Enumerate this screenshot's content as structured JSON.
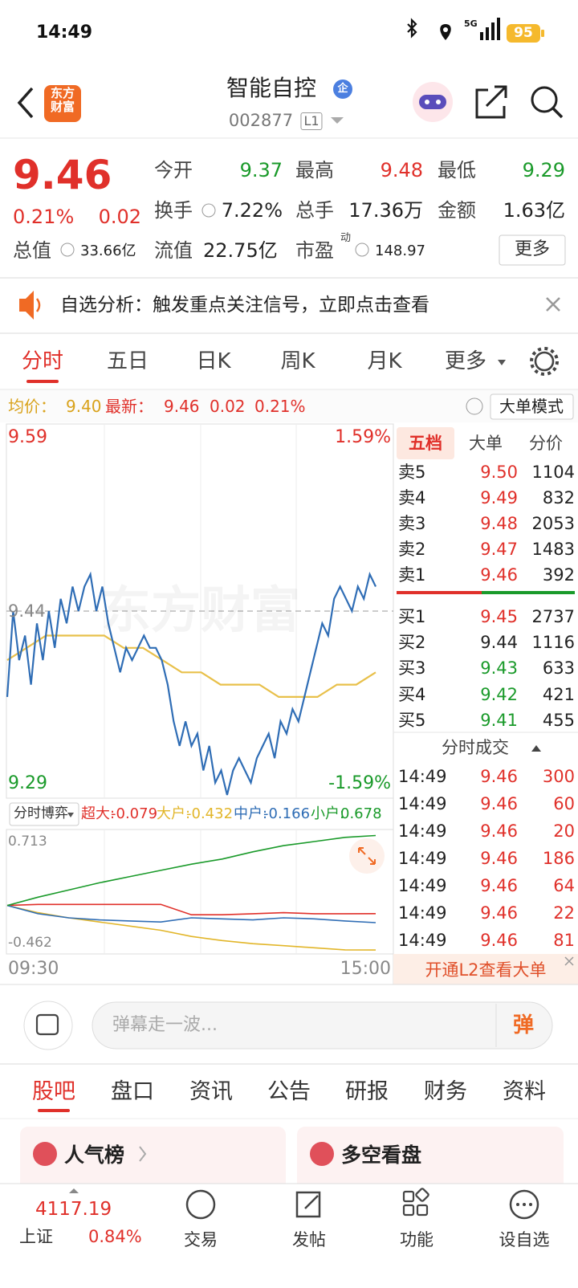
{
  "status_bar": {
    "time": "14:49",
    "network": "5G",
    "battery": "95"
  },
  "header": {
    "logo": "东方财富",
    "title": "智能自控",
    "badge": "企",
    "code": "002877",
    "level": "L1"
  },
  "quote": {
    "price": "9.46",
    "change_pct": "0.21%",
    "change": "0.02",
    "stats": [
      {
        "label": "今开",
        "value": "9.37",
        "color": "#1a9a2a"
      },
      {
        "label": "最高",
        "value": "9.48",
        "color": "#e0302a"
      },
      {
        "label": "最低",
        "value": "9.29",
        "color": "#1a9a2a"
      },
      {
        "label": "换手",
        "value": "7.22%"
      },
      {
        "label": "总手",
        "value": "17.36万"
      },
      {
        "label": "金额",
        "value": "1.63亿"
      },
      {
        "label": "总值",
        "value": "33.66亿"
      },
      {
        "label": "流值",
        "value": "22.75亿"
      },
      {
        "label": "市盈",
        "superscript": "动",
        "value": "148.97"
      }
    ],
    "more": "更多"
  },
  "notice": "自选分析：触发重点关注信号，立即点击查看",
  "tabs": [
    "分时",
    "五日",
    "日K",
    "周K",
    "月K",
    "更多"
  ],
  "summary": {
    "avg_label": "均价：",
    "avg": "9.40",
    "last_label": "最新：",
    "last": "9.46",
    "change": "0.02",
    "change_pct": "0.21%",
    "mode_button": "大单模式"
  },
  "intraday": {
    "watermark": "东方财富",
    "ylim": [
      9.29,
      9.59
    ],
    "prev_close": 9.44,
    "upper_pct": "1.59%",
    "lower_pct": "-1.59%",
    "price": [
      9.37,
      9.44,
      9.4,
      9.42,
      9.38,
      9.43,
      9.4,
      9.44,
      9.41,
      9.45,
      9.43,
      9.46,
      9.44,
      9.46,
      9.47,
      9.44,
      9.46,
      9.43,
      9.41,
      9.39,
      9.41,
      9.4,
      9.41,
      9.42,
      9.41,
      9.41,
      9.4,
      9.38,
      9.35,
      9.33,
      9.35,
      9.33,
      9.34,
      9.31,
      9.33,
      9.3,
      9.31,
      9.29,
      9.31,
      9.32,
      9.31,
      9.3,
      9.32,
      9.33,
      9.34,
      9.32,
      9.35,
      9.34,
      9.36,
      9.35,
      9.37,
      9.39,
      9.41,
      9.43,
      9.42,
      9.45,
      9.46,
      9.45,
      9.44,
      9.46,
      9.45,
      9.47,
      9.46
    ],
    "price_color": "#2f6db5",
    "avg": [
      9.4,
      9.41,
      9.42,
      9.42,
      9.42,
      9.42,
      9.41,
      9.41,
      9.4,
      9.39,
      9.39,
      9.38,
      9.38,
      9.38,
      9.37,
      9.37,
      9.37,
      9.38,
      9.38,
      9.39
    ],
    "avg_color": "#e8c04a"
  },
  "flow": {
    "selector": "分时博弈",
    "ylim": [
      -0.462,
      0.713
    ],
    "x_start": "09:30",
    "x_end": "15:00",
    "series": [
      {
        "name": "超大:",
        "color": "#e0302a",
        "values": [
          0,
          0.01,
          0.01,
          0.01,
          0.01,
          0.01,
          -0.09,
          -0.09,
          -0.08,
          -0.07,
          -0.08,
          -0.08,
          -0.079
        ]
      },
      {
        "name": "大户:",
        "color": "#e2b62a",
        "values": [
          0,
          -0.07,
          -0.12,
          -0.16,
          -0.2,
          -0.24,
          -0.3,
          -0.34,
          -0.37,
          -0.39,
          -0.41,
          -0.43,
          -0.432
        ]
      },
      {
        "name": "中户:",
        "color": "#2f6db5",
        "values": [
          0,
          -0.08,
          -0.12,
          -0.14,
          -0.15,
          -0.16,
          -0.12,
          -0.13,
          -0.14,
          -0.12,
          -0.13,
          -0.15,
          -0.166
        ]
      },
      {
        "name": "小户:",
        "color": "#1a9a2a",
        "values": [
          0,
          0.08,
          0.15,
          0.22,
          0.28,
          0.34,
          0.4,
          0.45,
          0.52,
          0.58,
          0.62,
          0.66,
          0.678
        ]
      }
    ]
  },
  "order_book": {
    "tabs": [
      "五档",
      "大单",
      "分价"
    ],
    "asks": [
      {
        "label": "卖5",
        "price": "9.50",
        "volume": "1104"
      },
      {
        "label": "卖4",
        "price": "9.49",
        "volume": "832"
      },
      {
        "label": "卖3",
        "price": "9.48",
        "volume": "2053"
      },
      {
        "label": "卖2",
        "price": "9.47",
        "volume": "1483"
      },
      {
        "label": "卖1",
        "price": "9.46",
        "volume": "392"
      }
    ],
    "bids": [
      {
        "label": "买1",
        "price": "9.45",
        "volume": "2737"
      },
      {
        "label": "买2",
        "price": "9.44",
        "volume": "1116"
      },
      {
        "label": "买3",
        "price": "9.43",
        "volume": "633"
      },
      {
        "label": "买4",
        "price": "9.42",
        "volume": "421"
      },
      {
        "label": "买5",
        "price": "9.41",
        "volume": "455"
      }
    ],
    "trades_title": "分时成交",
    "trades": [
      {
        "time": "14:49",
        "price": "9.46",
        "volume": "300"
      },
      {
        "time": "14:49",
        "price": "9.46",
        "volume": "60"
      },
      {
        "time": "14:49",
        "price": "9.46",
        "volume": "20"
      },
      {
        "time": "14:49",
        "price": "9.46",
        "volume": "186"
      },
      {
        "time": "14:49",
        "price": "9.46",
        "volume": "64"
      },
      {
        "time": "14:49",
        "price": "9.46",
        "volume": "22"
      },
      {
        "time": "14:49",
        "price": "9.46",
        "volume": "81"
      }
    ],
    "l2_button": "开通L2查看大单"
  },
  "comment_bar": {
    "placeholder": "弹幕走一波...",
    "send": "弹"
  },
  "content_tabs": [
    "股吧",
    "盘口",
    "资讯",
    "公告",
    "研报",
    "财务",
    "资料"
  ],
  "cards": [
    "人气榜",
    "多空看盘"
  ],
  "bottom_nav": {
    "index": {
      "value": "4117.19",
      "name": "上证",
      "change_pct": "0.84%"
    },
    "items": [
      "交易",
      "发帖",
      "功能",
      "设自选"
    ]
  }
}
